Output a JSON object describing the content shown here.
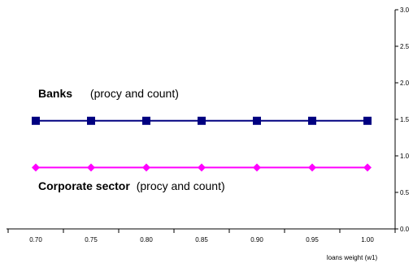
{
  "chart_data": {
    "type": "line",
    "x": [
      0.7,
      0.75,
      0.8,
      0.85,
      0.9,
      0.95,
      1.0
    ],
    "x_tick_labels": [
      "0.70",
      "0.75",
      "0.80",
      "0.85",
      "0.90",
      "0.95",
      "1.00"
    ],
    "xlabel": "loans weight (w1)",
    "ylabel": "",
    "ylim": [
      0.0,
      3.0
    ],
    "y_ticks": [
      0.0,
      0.5,
      1.0,
      1.5,
      2.0,
      2.5,
      3.0
    ],
    "y_tick_labels": [
      "0.0",
      "0.5",
      "1.0",
      "1.5",
      "2.0",
      "2.5",
      "3.0"
    ],
    "y_axis_side": "right",
    "grid": false,
    "legend": "none",
    "series": [
      {
        "values": [
          1.48,
          1.48,
          1.48,
          1.48,
          1.48,
          1.48,
          1.48
        ],
        "color": "#000080",
        "marker": "square"
      },
      {
        "values": [
          0.84,
          0.84,
          0.84,
          0.84,
          0.84,
          0.84,
          0.84
        ],
        "color": "#ff00ff",
        "marker": "diamond"
      }
    ],
    "annotations": [
      {
        "bold": "Banks",
        "text": "(procy and count)"
      },
      {
        "bold": "Corporate sector",
        "text": "(procy  and count)"
      }
    ]
  }
}
